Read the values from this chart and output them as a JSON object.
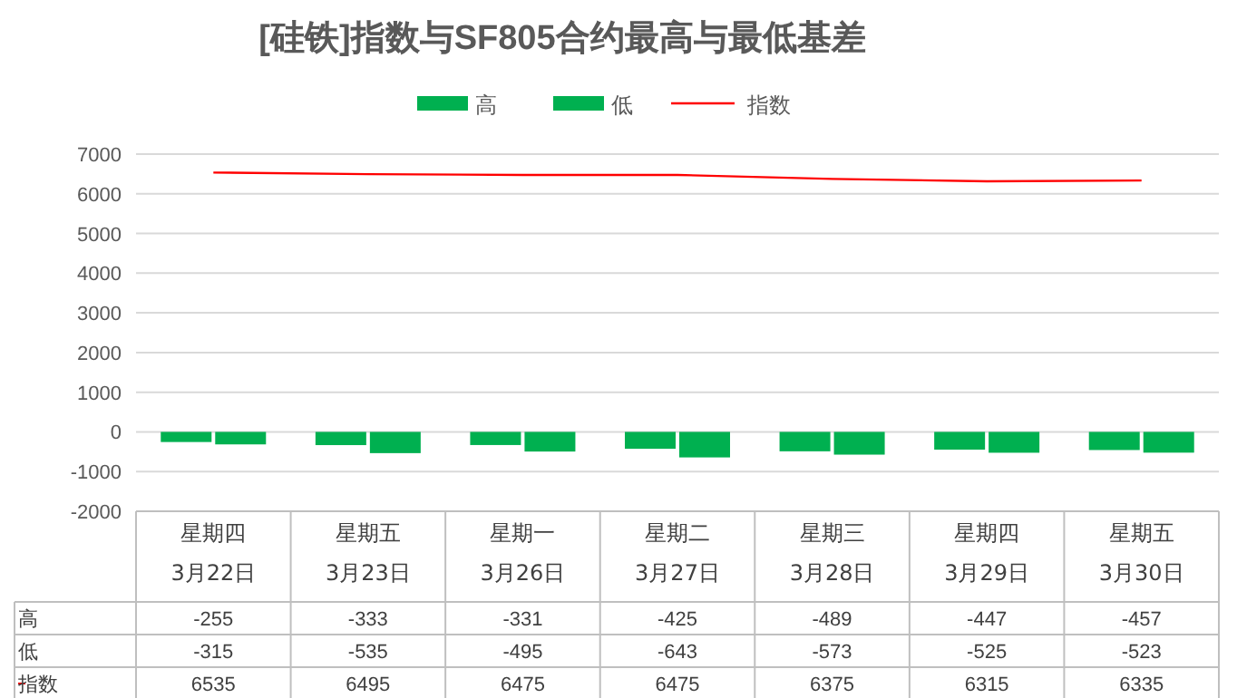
{
  "chart_data": {
    "type": "bar",
    "title": "[硅铁]指数与SF805合约最高与最低基差",
    "categories": [
      "星期四\n3月22日",
      "星期五\n3月23日",
      "星期一\n3月26日",
      "星期二\n3月27日",
      "星期三\n3月28日",
      "星期四\n3月29日",
      "星期五\n3月30日"
    ],
    "series": [
      {
        "name": "高",
        "color": "#00b050",
        "values": [
          -255,
          -333,
          -331,
          -425,
          -489,
          -447,
          -457
        ]
      },
      {
        "name": "低",
        "color": "#00b050",
        "values": [
          -315,
          -535,
          -495,
          -643,
          -573,
          -525,
          -523
        ]
      },
      {
        "name": "指数",
        "type": "line",
        "color": "#ff0000",
        "values": [
          6535,
          6495,
          6475,
          6475,
          6375,
          6315,
          6335
        ]
      }
    ],
    "ylim": [
      -2000,
      7000
    ],
    "yticks": [
      -2000,
      -1000,
      0,
      1000,
      2000,
      3000,
      4000,
      5000,
      6000,
      7000
    ],
    "grid": "y",
    "legend": "top",
    "data_labels": true
  }
}
